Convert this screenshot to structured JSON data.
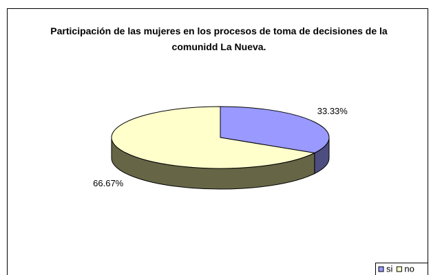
{
  "chart_data": {
    "type": "pie3d",
    "title": "Participación de las mujeres en los procesos de toma de decisiones de la comunidd La Nueva.",
    "categories": [
      "si",
      "no"
    ],
    "values": [
      33.33,
      66.67
    ],
    "value_labels": [
      "33.33%",
      "66.67%"
    ],
    "colors": [
      "#9999ff",
      "#ffffcc"
    ],
    "side_colors": [
      "#4d4d80",
      "#666647"
    ],
    "legend": "bottom-right"
  }
}
